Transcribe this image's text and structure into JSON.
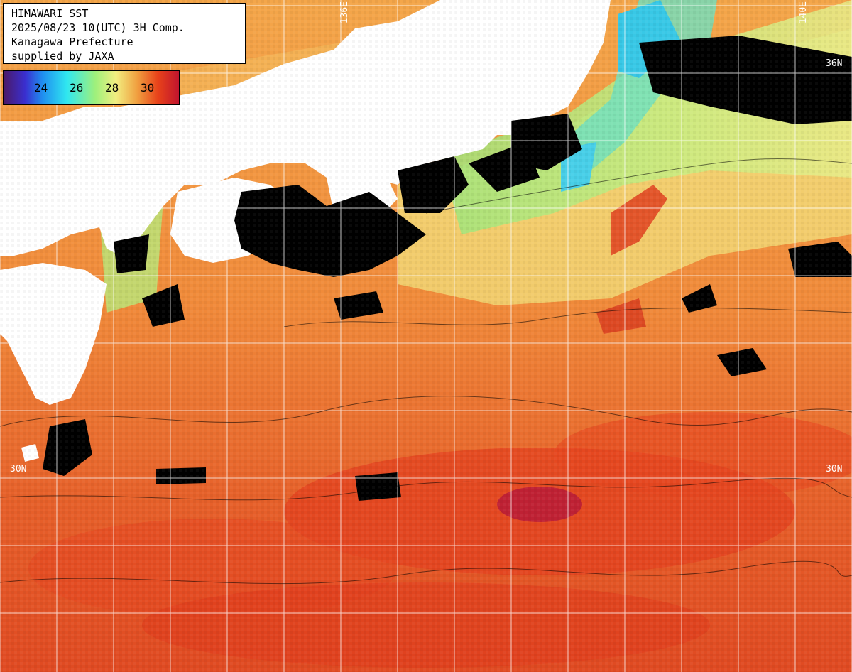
{
  "header": {
    "line1": "HIMAWARI SST",
    "line2": "2025/08/23 10(UTC) 3H Comp.",
    "line3": "Kanagawa Prefecture",
    "line4": "supplied by JAXA"
  },
  "legend": {
    "ticks": [
      "24",
      "26",
      "28",
      "30"
    ],
    "colors": [
      "#4a1a6a",
      "#3a2fd0",
      "#1f8ff0",
      "#30e8f0",
      "#9ef07c",
      "#f2ee80",
      "#f0a040",
      "#e8421a",
      "#c0142e"
    ]
  },
  "grid_labels": {
    "lat_36": "36N",
    "lat_30": "30N",
    "lat_30_right": "30N",
    "lon_136": "136E",
    "lon_140": "140E"
  },
  "colors": {
    "land": "#ffffff",
    "cloud": "#000000",
    "warm": "#ee7a34",
    "hot": "#e0401e",
    "mild": "#f6b654",
    "cool": "#b8ec7a",
    "cold": "#44d8e8"
  }
}
